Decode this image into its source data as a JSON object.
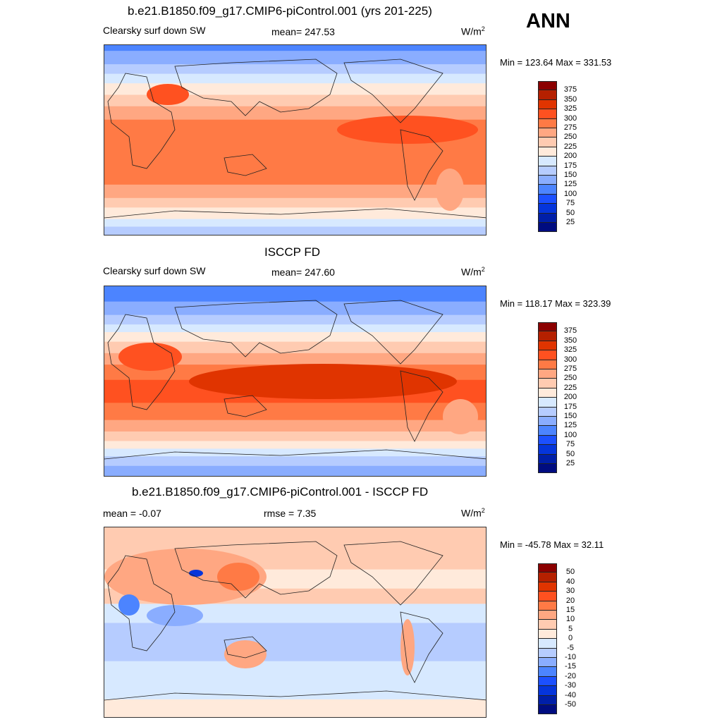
{
  "season": "ANN",
  "colormap": [
    "#8b0000",
    "#b52000",
    "#e03400",
    "#ff5120",
    "#ff7a45",
    "#ffa782",
    "#ffcbb1",
    "#ffeadb",
    "#d7e9ff",
    "#b6ccff",
    "#8aadff",
    "#4c84ff",
    "#1c50ff",
    "#0535db",
    "#001fa8",
    "#000c80"
  ],
  "panels": [
    {
      "title": "b.e21.B1850.f09_g17.CMIP6-piControl.001 (yrs 201-225)",
      "left_label": "Clearsky surf down SW",
      "center_label": "mean= 247.53",
      "units": "W/m",
      "units_sup": "2",
      "minmax": "Min = 123.64 Max = 331.53",
      "colorbar_ticks": [
        "375",
        "350",
        "325",
        "300",
        "275",
        "250",
        "225",
        "200",
        "175",
        "150",
        "125",
        "100",
        "75",
        "50",
        "25"
      ]
    },
    {
      "title": "ISCCP FD",
      "left_label": "Clearsky surf down SW",
      "center_label": "mean= 247.60",
      "units": "W/m",
      "units_sup": "2",
      "minmax": "Min = 118.17 Max = 323.39",
      "colorbar_ticks": [
        "375",
        "350",
        "325",
        "300",
        "275",
        "250",
        "225",
        "200",
        "175",
        "150",
        "125",
        "100",
        "75",
        "50",
        "25"
      ]
    },
    {
      "title": "b.e21.B1850.f09_g17.CMIP6-piControl.001 - ISCCP FD",
      "left_label": "mean =  -0.07",
      "center_label": "rmse =   7.35",
      "units": "W/m",
      "units_sup": "2",
      "minmax": "Min = -45.78 Max =  32.11",
      "colorbar_ticks": [
        "50",
        "40",
        "30",
        "20",
        "15",
        "10",
        "5",
        "0",
        "-5",
        "-10",
        "-15",
        "-20",
        "-30",
        "-40",
        "-50"
      ]
    }
  ]
}
